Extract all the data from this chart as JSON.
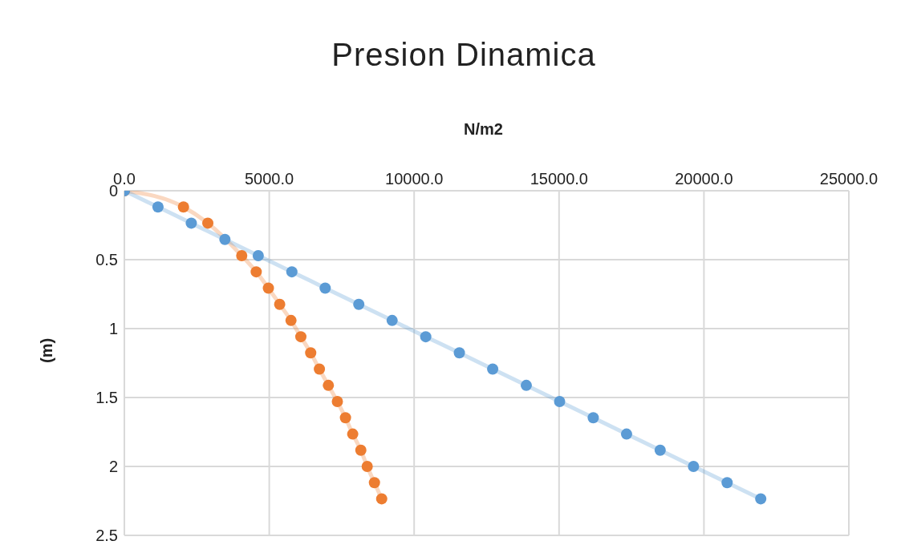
{
  "chart_data": {
    "type": "line",
    "title": "Presion Dinamica",
    "xlabel": "N/m2",
    "ylabel": "(m)",
    "xlim": [
      0,
      25000
    ],
    "xticks": [
      {
        "value": 0,
        "label": "0.0"
      },
      {
        "value": 5000,
        "label": "5000.0"
      },
      {
        "value": 10000,
        "label": "10000.0"
      },
      {
        "value": 15000,
        "label": "15000.0"
      },
      {
        "value": 20000,
        "label": "20000.0"
      },
      {
        "value": 25000,
        "label": "25000.0"
      }
    ],
    "ylim": [
      2.5,
      0
    ],
    "yticks": [
      0,
      0.5,
      1,
      1.5,
      2,
      2.5
    ],
    "grid": true,
    "marker": "circle",
    "line_style": "solid",
    "series": [
      {
        "color": "#5b9bd5",
        "x": [
          0,
          1160,
          2310,
          3470,
          4620,
          5780,
          6930,
          8090,
          9240,
          10400,
          11560,
          12710,
          13870,
          15020,
          16180,
          17330,
          18490,
          19640,
          20800,
          21960
        ],
        "values": [
          0,
          0.118,
          0.235,
          0.353,
          0.471,
          0.588,
          0.706,
          0.824,
          0.941,
          1.059,
          1.176,
          1.294,
          1.412,
          1.529,
          1.647,
          1.765,
          1.882,
          2.0,
          2.118,
          2.235
        ]
      },
      {
        "color": "#ed7d31",
        "x": [
          0,
          2040,
          2880,
          3520,
          4050,
          4550,
          4970,
          5360,
          5750,
          6090,
          6430,
          6730,
          7040,
          7350,
          7630,
          7880,
          8160,
          8380,
          8630,
          8880
        ],
        "values": [
          0,
          0.118,
          0.235,
          null,
          0.471,
          0.588,
          0.706,
          0.824,
          0.941,
          1.059,
          1.176,
          1.294,
          1.412,
          1.529,
          1.647,
          1.765,
          1.882,
          2.0,
          2.118,
          2.235
        ]
      }
    ]
  }
}
